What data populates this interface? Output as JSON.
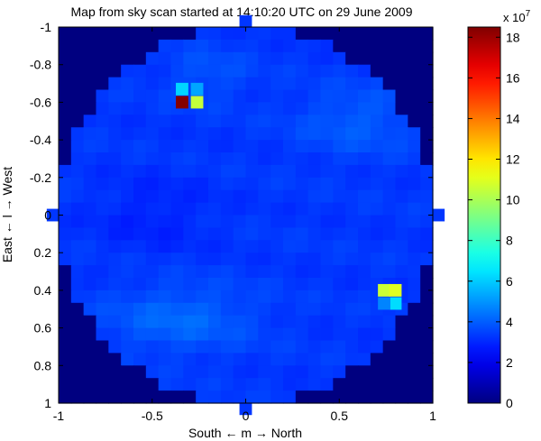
{
  "chart_data": {
    "type": "heatmap",
    "title": "Map from sky scan started at 14:10:20 UTC on 29 June 2009",
    "xlabel": "South ← m → North",
    "ylabel": "East ← l → West",
    "xlim": [
      -1,
      1
    ],
    "ylim": [
      -1,
      1
    ],
    "y_reversed": true,
    "xticks": [
      -1,
      -0.5,
      0,
      0.5,
      1
    ],
    "xtick_labels": [
      "-1",
      "-0.5",
      "0",
      "0.5",
      "1"
    ],
    "yticks": [
      -1,
      -0.8,
      -0.6,
      -0.4,
      -0.2,
      0,
      0.2,
      0.4,
      0.6,
      0.8,
      1
    ],
    "ytick_labels": [
      "-1",
      "-0.8",
      "-0.6",
      "-0.4",
      "-0.2",
      "0",
      "0.2",
      "0.4",
      "0.6",
      "0.8",
      "1"
    ],
    "grid": false,
    "colorbar": {
      "range": [
        0,
        18.5
      ],
      "ticks": [
        0,
        2,
        4,
        6,
        8,
        10,
        12,
        14,
        16,
        18
      ],
      "tick_labels": [
        "0",
        "2",
        "4",
        "6",
        "8",
        "10",
        "12",
        "14",
        "16",
        "18"
      ],
      "exponent_base": "x 10",
      "exponent": "7",
      "colormap": "jet"
    },
    "hotspots": [
      {
        "l": -0.6,
        "m": -0.34,
        "value": 18.4
      },
      {
        "l": -0.6,
        "m": -0.26,
        "value": 10.5
      },
      {
        "l": -0.67,
        "m": -0.34,
        "value": 6.2
      },
      {
        "l": -0.67,
        "m": -0.26,
        "value": 5.3
      },
      {
        "l": 0.4,
        "m": 0.74,
        "value": 10.6
      },
      {
        "l": 0.4,
        "m": 0.8,
        "value": 11.0
      },
      {
        "l": 0.47,
        "m": 0.8,
        "value": 6.3
      },
      {
        "l": 0.47,
        "m": 0.74,
        "value": 4.7
      }
    ]
  }
}
